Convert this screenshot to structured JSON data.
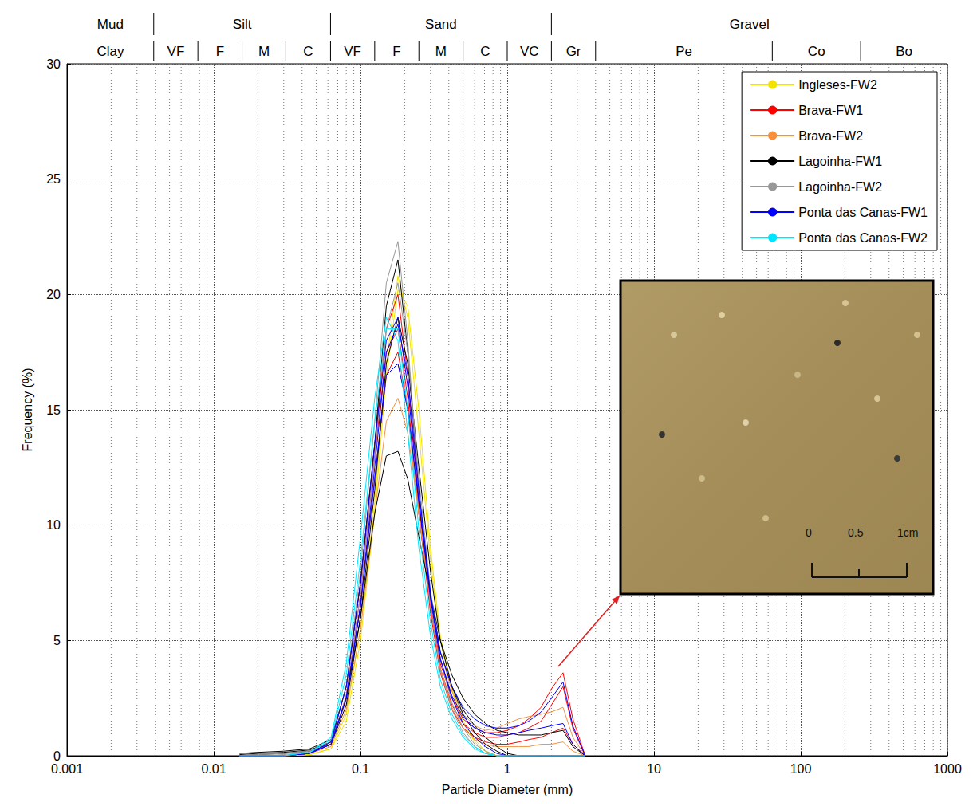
{
  "chart_data": {
    "type": "line",
    "xlabel": "Particle Diameter (mm)",
    "ylabel": "Frequency (%)",
    "log": "x",
    "grid": true,
    "legend": "upper right",
    "xlim": [
      0.001,
      1000
    ],
    "ylim": [
      0,
      30
    ],
    "xticks": [
      0.001,
      0.01,
      0.1,
      1,
      10,
      100,
      1000
    ],
    "yticks": [
      0,
      5,
      10,
      15,
      20,
      25,
      30
    ],
    "x": [
      0.015,
      0.02,
      0.03,
      0.045,
      0.063,
      0.08,
      0.1,
      0.125,
      0.15,
      0.18,
      0.21,
      0.25,
      0.3,
      0.35,
      0.42,
      0.5,
      0.6,
      0.71,
      0.85,
      1.0,
      1.2,
      1.4,
      1.7,
      2.0,
      2.4,
      2.8,
      3.4
    ],
    "series": [
      {
        "name": "Ingleses-FW2",
        "color": "#f2e200",
        "values": [
          [
            0,
            0,
            0,
            0.05,
            0.3,
            1.8,
            5.5,
            11,
            17,
            20.8,
            19,
            14,
            8.5,
            5,
            2.8,
            1.4,
            0.6,
            0.2,
            0,
            0,
            0,
            0,
            0,
            0,
            0,
            0,
            0
          ],
          [
            0,
            0,
            0,
            0.05,
            0.3,
            1.5,
            5,
            10.5,
            16.5,
            20.2,
            19.5,
            15,
            9,
            5.2,
            2.9,
            1.5,
            0.7,
            0.2,
            0,
            0,
            0,
            0,
            0,
            0,
            0,
            0,
            0
          ]
        ]
      },
      {
        "name": "Brava-FW1",
        "color": "#ff0000",
        "values": [
          [
            0,
            0,
            0,
            0.1,
            0.5,
            2.5,
            6.5,
            12,
            16.5,
            17.5,
            15,
            10.5,
            6.5,
            4,
            2.5,
            1.6,
            1.2,
            1.0,
            1.0,
            1.1,
            1.3,
            1.6,
            2.1,
            2.9,
            3.6,
            1.6,
            0
          ],
          [
            0,
            0,
            0,
            0.1,
            0.6,
            3,
            7.5,
            13.5,
            18.5,
            20,
            16.5,
            11,
            6.5,
            3.8,
            2.2,
            1.4,
            1.0,
            0.8,
            0.8,
            0.9,
            1.0,
            1.2,
            1.5,
            2.2,
            3.0,
            1.2,
            0
          ],
          [
            0,
            0,
            0,
            0.1,
            0.5,
            2.6,
            7,
            13,
            17.5,
            18.5,
            15.5,
            10.5,
            6.2,
            3.6,
            2.0,
            1.2,
            0.8,
            0.6,
            0.5,
            0.5,
            0.6,
            0.7,
            0.8,
            1.0,
            1.2,
            0.5,
            0
          ]
        ]
      },
      {
        "name": "Brava-FW2",
        "color": "#f5913e",
        "values": [
          [
            0,
            0,
            0,
            0.1,
            0.4,
            2,
            5.5,
            10.5,
            14.5,
            15.5,
            14,
            10.5,
            7,
            4.5,
            2.8,
            1.8,
            1.3,
            1.1,
            1.2,
            1.4,
            1.6,
            1.7,
            1.8,
            1.9,
            2.1,
            0.8,
            0
          ],
          [
            0,
            0,
            0,
            0.1,
            0.5,
            2.4,
            6.5,
            12,
            16.5,
            17,
            15,
            10.5,
            6.5,
            3.8,
            2.1,
            1.2,
            0.7,
            0.5,
            0.4,
            0.4,
            0.4,
            0.4,
            0.5,
            0.5,
            0.6,
            0.2,
            0
          ]
        ]
      },
      {
        "name": "Lagoinha-FW1",
        "color": "#000000",
        "values": [
          [
            0.1,
            0.15,
            0.2,
            0.3,
            0.7,
            3,
            7.5,
            13.5,
            19.5,
            21.5,
            17.5,
            11.5,
            7,
            4.5,
            3,
            2,
            1.3,
            0.8,
            0.4,
            0.1,
            0,
            0,
            0,
            0,
            0,
            0,
            0
          ],
          [
            0.05,
            0.1,
            0.15,
            0.25,
            0.6,
            2.5,
            6,
            10.5,
            13,
            13.2,
            12,
            9.5,
            7,
            5,
            3.5,
            2.5,
            1.8,
            1.4,
            1.1,
            1.0,
            0.9,
            0.9,
            0.9,
            1.0,
            1.1,
            0.4,
            0
          ],
          [
            0,
            0.05,
            0.1,
            0.2,
            0.5,
            2.2,
            6,
            11.5,
            17,
            19,
            17,
            12.5,
            8,
            5,
            3,
            1.8,
            1.0,
            0.5,
            0.2,
            0,
            0,
            0,
            0,
            0,
            0,
            0,
            0
          ]
        ]
      },
      {
        "name": "Lagoinha-FW2",
        "color": "#999999",
        "values": [
          [
            0,
            0.05,
            0.1,
            0.2,
            0.6,
            3,
            8,
            14.5,
            20.5,
            22.3,
            18,
            11.5,
            6.5,
            3.7,
            2,
            1,
            0.4,
            0.1,
            0,
            0,
            0,
            0,
            0,
            0,
            0,
            0,
            0
          ],
          [
            0,
            0,
            0.05,
            0.15,
            0.5,
            2.6,
            7,
            13,
            18.5,
            20.5,
            17.5,
            12,
            7.2,
            4.2,
            2.3,
            1.2,
            0.5,
            0.2,
            0,
            0,
            0,
            0,
            0,
            0,
            0,
            0,
            0
          ]
        ]
      },
      {
        "name": "Ponta das Canas-FW1",
        "color": "#0000ff",
        "values": [
          [
            0,
            0,
            0,
            0.1,
            0.5,
            2.5,
            6.5,
            12,
            16.5,
            17,
            15,
            11,
            7,
            4.5,
            3,
            2.1,
            1.6,
            1.3,
            1.2,
            1.2,
            1.3,
            1.5,
            1.9,
            2.5,
            3.2,
            1.3,
            0
          ],
          [
            0,
            0,
            0,
            0.1,
            0.6,
            3,
            7.5,
            13.5,
            18,
            19,
            16,
            11,
            6.8,
            4.2,
            2.6,
            1.7,
            1.2,
            1.0,
            0.9,
            0.9,
            1.0,
            1.1,
            1.2,
            1.3,
            1.4,
            0.5,
            0
          ],
          [
            0,
            0,
            0,
            0.1,
            0.5,
            2.5,
            6.5,
            12.5,
            17.5,
            18.7,
            16.5,
            11.5,
            7,
            4.2,
            2.5,
            1.4,
            0.8,
            0.4,
            0.1,
            0,
            0,
            0,
            0,
            0,
            0,
            0,
            0
          ]
        ]
      },
      {
        "name": "Ponta das Canas-FW2",
        "color": "#00e5ff",
        "values": [
          [
            0,
            0,
            0,
            0.15,
            0.8,
            4,
            9.5,
            15.5,
            19,
            18,
            14,
            9,
            5.2,
            3,
            1.6,
            0.8,
            0.3,
            0.1,
            0,
            0,
            0,
            0,
            0,
            0,
            0,
            0,
            0
          ],
          [
            0,
            0,
            0,
            0.15,
            0.7,
            3.5,
            8.5,
            14.5,
            18.5,
            18.5,
            15,
            9.8,
            5.8,
            3.3,
            1.8,
            0.9,
            0.4,
            0.1,
            0,
            0,
            0,
            0,
            0,
            0,
            0,
            0,
            0
          ]
        ]
      }
    ],
    "size_classes": {
      "major": [
        {
          "label": "Mud",
          "from": 0.001,
          "to": 0.0039
        },
        {
          "label": "Silt",
          "from": 0.0039,
          "to": 0.0625
        },
        {
          "label": "Sand",
          "from": 0.0625,
          "to": 2
        },
        {
          "label": "Gravel",
          "from": 2,
          "to": 1000
        }
      ],
      "minor": [
        {
          "label": "Clay",
          "from": 0.001,
          "to": 0.0039
        },
        {
          "label": "VF",
          "from": 0.0039,
          "to": 0.0078
        },
        {
          "label": "F",
          "from": 0.0078,
          "to": 0.0156
        },
        {
          "label": "M",
          "from": 0.0156,
          "to": 0.031
        },
        {
          "label": "C",
          "from": 0.031,
          "to": 0.0625
        },
        {
          "label": "VF",
          "from": 0.0625,
          "to": 0.125
        },
        {
          "label": "F",
          "from": 0.125,
          "to": 0.25
        },
        {
          "label": "M",
          "from": 0.25,
          "to": 0.5
        },
        {
          "label": "C",
          "from": 0.5,
          "to": 1
        },
        {
          "label": "VC",
          "from": 1,
          "to": 2
        },
        {
          "label": "Gr",
          "from": 2,
          "to": 4
        },
        {
          "label": "Pe",
          "from": 4,
          "to": 64
        },
        {
          "label": "Co",
          "from": 64,
          "to": 256
        },
        {
          "label": "Bo",
          "from": 256,
          "to": 1000
        }
      ]
    },
    "inset": {
      "scale_labels": [
        "0",
        "0.5",
        "1cm"
      ]
    }
  }
}
